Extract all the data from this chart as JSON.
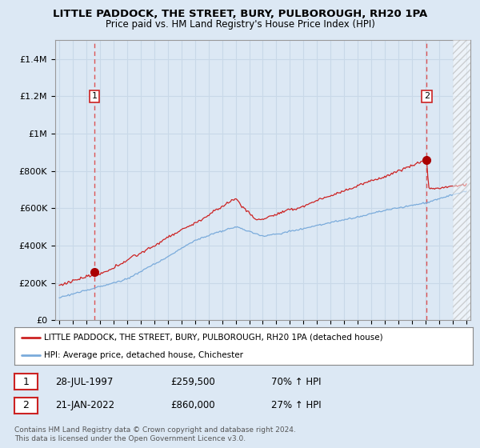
{
  "title": "LITTLE PADDOCK, THE STREET, BURY, PULBOROUGH, RH20 1PA",
  "subtitle": "Price paid vs. HM Land Registry's House Price Index (HPI)",
  "ylim": [
    0,
    1500000
  ],
  "yticks": [
    0,
    200000,
    400000,
    600000,
    800000,
    1000000,
    1200000,
    1400000
  ],
  "ytick_labels": [
    "£0",
    "£200K",
    "£400K",
    "£600K",
    "£800K",
    "£1M",
    "£1.2M",
    "£1.4M"
  ],
  "line1_color": "#cc2222",
  "line2_color": "#7aabdb",
  "marker_color": "#aa0000",
  "dashed_line_color": "#dd4444",
  "grid_color": "#c8d8e8",
  "bg_color": "#dce8f4",
  "plot_bg_color": "#dce8f4",
  "legend_line1": "LITTLE PADDOCK, THE STREET, BURY, PULBOROUGH, RH20 1PA (detached house)",
  "legend_line2": "HPI: Average price, detached house, Chichester",
  "annotation1_date": "28-JUL-1997",
  "annotation1_price": "£259,500",
  "annotation1_hpi": "70% ↑ HPI",
  "annotation2_date": "21-JAN-2022",
  "annotation2_price": "£860,000",
  "annotation2_hpi": "27% ↑ HPI",
  "footer": "Contains HM Land Registry data © Crown copyright and database right 2024.\nThis data is licensed under the Open Government Licence v3.0.",
  "t1": 1997.57,
  "t2": 2022.05,
  "sale1_price": 259500,
  "sale2_price": 860000
}
